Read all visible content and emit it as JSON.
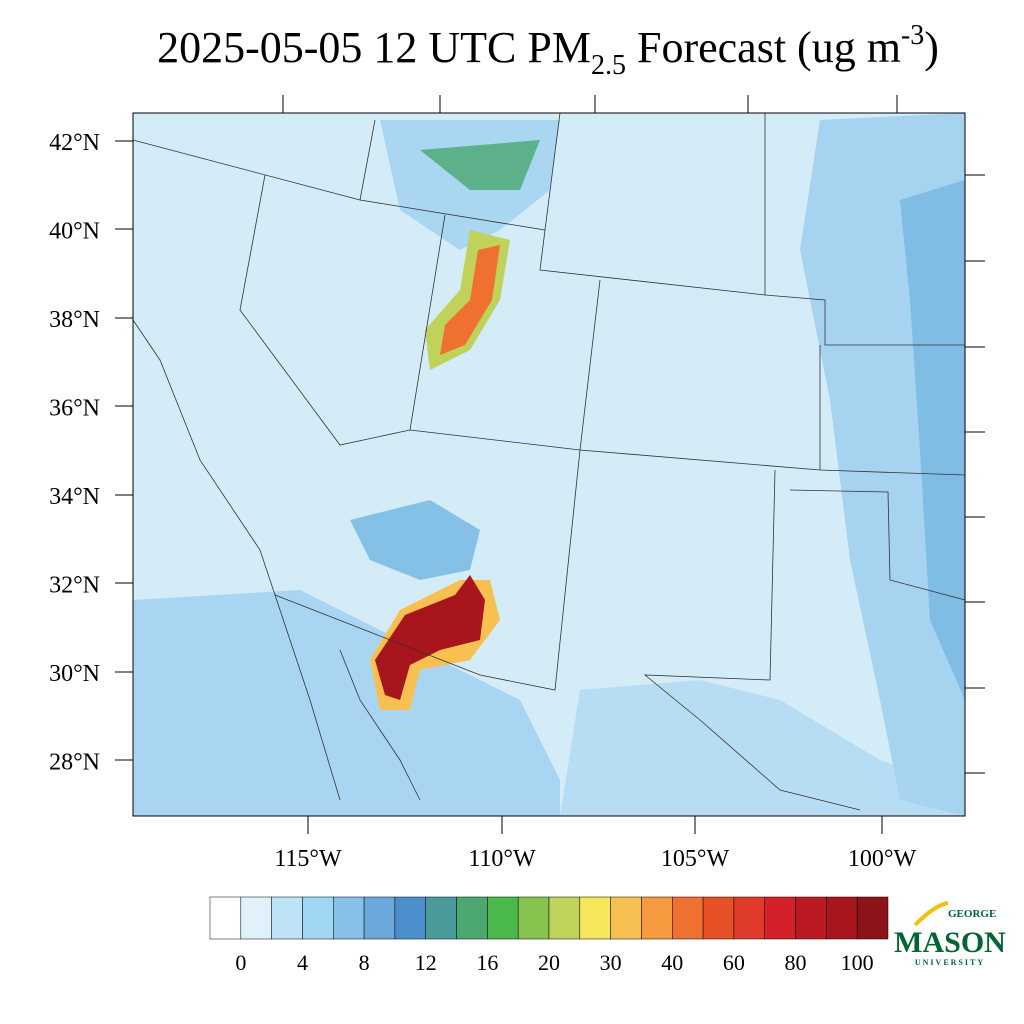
{
  "title": {
    "main": "2025-05-05 12 UTC PM",
    "sub": "2.5",
    "rest": " Forecast (ug m",
    "sup": "-3",
    "end": ")"
  },
  "lat_labels": [
    "42°N",
    "40°N",
    "38°N",
    "36°N",
    "34°N",
    "32°N",
    "30°N",
    "28°N"
  ],
  "lon_labels": [
    "115°W",
    "110°W",
    "105°W",
    "100°W"
  ],
  "colorbar": {
    "labels": [
      "0",
      "4",
      "8",
      "12",
      "16",
      "20",
      "30",
      "40",
      "60",
      "80",
      "100"
    ],
    "colors": [
      "#ffffff",
      "#dff1fb",
      "#bfe3f6",
      "#a0d6f2",
      "#85c0e6",
      "#6aa8db",
      "#4a8fcc",
      "#4a9a9a",
      "#4aa870",
      "#4bb84b",
      "#86c44f",
      "#bfd35a",
      "#f5e65a",
      "#f8c050",
      "#f59a3e",
      "#f07030",
      "#e85028",
      "#e03a2a",
      "#d42028",
      "#bc1a22",
      "#a8151c",
      "#8c1418"
    ]
  },
  "logo": {
    "top": "GEORGE",
    "main": "MASON",
    "bottom": "UNIVERSITY"
  }
}
